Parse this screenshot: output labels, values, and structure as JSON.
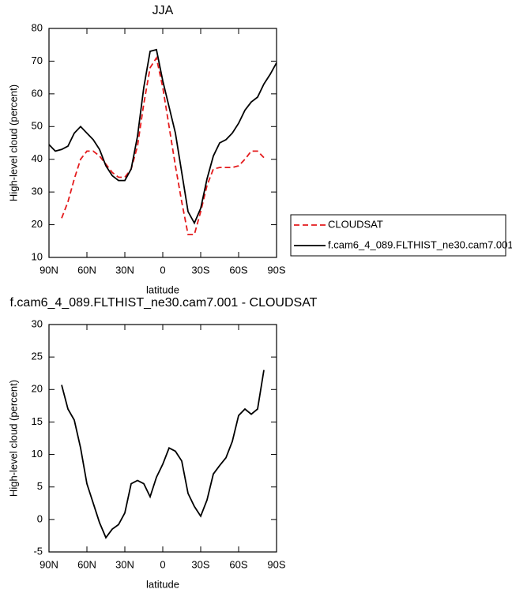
{
  "chart_data": [
    {
      "type": "line",
      "title": "JJA",
      "xlabel": "latitude",
      "ylabel": "High-level cloud (percent)",
      "x": [
        90,
        85,
        80,
        75,
        70,
        65,
        60,
        55,
        50,
        45,
        40,
        35,
        30,
        25,
        20,
        15,
        10,
        5,
        0,
        -5,
        -10,
        -15,
        -20,
        -25,
        -30,
        -35,
        -40,
        -45,
        -50,
        -55,
        -60,
        -65,
        -70,
        -75,
        -80,
        -85,
        -90
      ],
      "series": [
        {
          "name": "CLOUDSAT",
          "color": "#e41a1c",
          "line_style": "dashed",
          "values": [
            null,
            null,
            22,
            27,
            34,
            40,
            42.5,
            42.5,
            41,
            38.5,
            36,
            34.5,
            34.5,
            37,
            44,
            57,
            68,
            71,
            62,
            50,
            38,
            27,
            17,
            17,
            24,
            32,
            37,
            37.5,
            37.5,
            37.5,
            38,
            40,
            42.5,
            42.5,
            40.5,
            null,
            null
          ]
        },
        {
          "name": "f.cam6_4_089.FLTHIST_ne30.cam7.001",
          "color": "#000000",
          "line_style": "solid",
          "values": [
            44.5,
            42.5,
            43,
            44,
            48,
            50,
            48,
            46,
            43,
            38,
            35,
            33.5,
            33.5,
            37,
            47,
            62,
            73,
            73.5,
            64,
            56,
            48,
            36,
            24,
            20.5,
            25,
            34,
            41,
            45,
            46,
            48,
            51,
            55,
            57.5,
            59,
            63,
            66,
            69.5
          ]
        }
      ],
      "xlim": [
        90,
        -90
      ],
      "xticks": [
        {
          "value": 90,
          "label": "90N"
        },
        {
          "value": 60,
          "label": "60N"
        },
        {
          "value": 30,
          "label": "30N"
        },
        0,
        {
          "value": -30,
          "label": "30S"
        },
        {
          "value": -60,
          "label": "60S"
        },
        {
          "value": -90,
          "label": "90S"
        }
      ],
      "ylim": [
        10,
        80
      ],
      "yticks": [
        10,
        20,
        30,
        40,
        50,
        60,
        70,
        80
      ],
      "legend": "right"
    },
    {
      "type": "line",
      "title": "f.cam6_4_089.FLTHIST_ne30.cam7.001 - CLOUDSAT",
      "xlabel": "latitude",
      "ylabel": "High-level cloud (percent)",
      "x": [
        90,
        85,
        80,
        75,
        70,
        65,
        60,
        55,
        50,
        45,
        40,
        35,
        30,
        25,
        20,
        15,
        10,
        5,
        0,
        -5,
        -10,
        -15,
        -20,
        -25,
        -30,
        -35,
        -40,
        -45,
        -50,
        -55,
        -60,
        -65,
        -70,
        -75,
        -80,
        -85,
        -90
      ],
      "series": [
        {
          "color": "#000000",
          "line_style": "solid",
          "values": [
            null,
            null,
            20.7,
            17,
            15.3,
            11,
            5.5,
            2.5,
            -0.5,
            -2.8,
            -1.5,
            -0.8,
            1,
            5.5,
            6,
            5.5,
            3.5,
            6.5,
            8.5,
            11,
            10.5,
            9,
            4,
            2,
            0.5,
            3,
            7,
            8.3,
            9.5,
            12,
            16,
            17,
            16.2,
            17,
            23,
            null,
            null
          ]
        }
      ],
      "xlim": [
        90,
        -90
      ],
      "xticks": [
        {
          "value": 90,
          "label": "90N"
        },
        {
          "value": 60,
          "label": "60N"
        },
        {
          "value": 30,
          "label": "30N"
        },
        0,
        {
          "value": -30,
          "label": "30S"
        },
        {
          "value": -60,
          "label": "60S"
        },
        {
          "value": -90,
          "label": "90S"
        }
      ],
      "ylim": [
        -5,
        30
      ],
      "yticks": [
        -5,
        0,
        5,
        10,
        15,
        20,
        25,
        30
      ]
    }
  ]
}
